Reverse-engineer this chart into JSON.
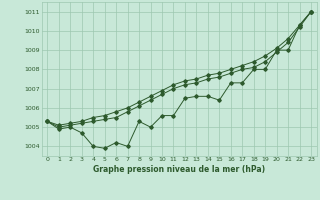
{
  "xlabel": "Graphe pression niveau de la mer (hPa)",
  "xlim": [
    -0.5,
    23.5
  ],
  "ylim": [
    1003.5,
    1011.5
  ],
  "yticks": [
    1004,
    1005,
    1006,
    1007,
    1008,
    1009,
    1010,
    1011
  ],
  "xticks": [
    0,
    1,
    2,
    3,
    4,
    5,
    6,
    7,
    8,
    9,
    10,
    11,
    12,
    13,
    14,
    15,
    16,
    17,
    18,
    19,
    20,
    21,
    22,
    23
  ],
  "bg_color": "#c8e8d8",
  "grid_color": "#9dc8b0",
  "line_color": "#2d5a2d",
  "line1_x": [
    0,
    1,
    2,
    3,
    4,
    5,
    6,
    7,
    8,
    9,
    10,
    11,
    12,
    13,
    14,
    15,
    16,
    17,
    18,
    19,
    20,
    21,
    22,
    23
  ],
  "line1_y": [
    1005.3,
    1004.9,
    1005.0,
    1004.7,
    1004.0,
    1003.9,
    1004.2,
    1004.0,
    1005.3,
    1005.0,
    1005.6,
    1005.6,
    1006.5,
    1006.6,
    1006.6,
    1006.4,
    1007.3,
    1007.3,
    1008.0,
    1008.0,
    1009.0,
    1009.0,
    1010.3,
    1011.0
  ],
  "line2_x": [
    0,
    1,
    2,
    3,
    4,
    5,
    6,
    7,
    8,
    9,
    10,
    11,
    12,
    13,
    14,
    15,
    16,
    17,
    18,
    19,
    20,
    21,
    22,
    23
  ],
  "line2_y": [
    1005.3,
    1005.0,
    1005.1,
    1005.2,
    1005.3,
    1005.4,
    1005.5,
    1005.8,
    1006.1,
    1006.4,
    1006.7,
    1007.0,
    1007.2,
    1007.3,
    1007.5,
    1007.6,
    1007.8,
    1008.0,
    1008.1,
    1008.4,
    1008.9,
    1009.4,
    1010.2,
    1011.0
  ],
  "line3_x": [
    0,
    1,
    2,
    3,
    4,
    5,
    6,
    7,
    8,
    9,
    10,
    11,
    12,
    13,
    14,
    15,
    16,
    17,
    18,
    19,
    20,
    21,
    22,
    23
  ],
  "line3_y": [
    1005.3,
    1005.1,
    1005.2,
    1005.3,
    1005.5,
    1005.6,
    1005.8,
    1006.0,
    1006.3,
    1006.6,
    1006.9,
    1007.2,
    1007.4,
    1007.5,
    1007.7,
    1007.8,
    1008.0,
    1008.2,
    1008.4,
    1008.7,
    1009.1,
    1009.6,
    1010.3,
    1011.0
  ]
}
